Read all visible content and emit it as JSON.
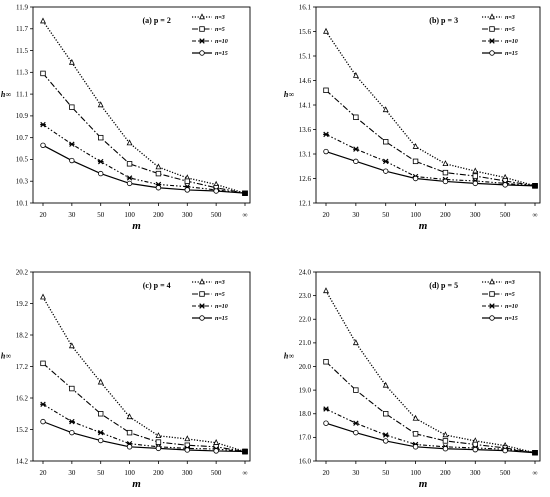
{
  "chart_data": [
    {
      "type": "line",
      "title": "(a) p = 2",
      "xlabel": "m",
      "ylabel": "h∞",
      "categories": [
        "20",
        "30",
        "50",
        "100",
        "200",
        "300",
        "500",
        "∞"
      ],
      "yticks": [
        "10.1",
        "10.3",
        "10.5",
        "10.7",
        "10.9",
        "11.1",
        "11.3",
        "11.5",
        "11.7",
        "11.9"
      ],
      "ylim": [
        10.1,
        11.9
      ],
      "legend_position": "top-right",
      "series": [
        {
          "name": "n=3",
          "values": [
            11.77,
            11.39,
            11.0,
            10.65,
            10.43,
            10.33,
            10.27,
            10.19
          ]
        },
        {
          "name": "n=5",
          "values": [
            11.29,
            10.98,
            10.7,
            10.46,
            10.37,
            10.3,
            10.24,
            10.19
          ]
        },
        {
          "name": "n=10",
          "values": [
            10.82,
            10.64,
            10.48,
            10.33,
            10.27,
            10.25,
            10.22,
            10.19
          ]
        },
        {
          "name": "n=15",
          "values": [
            10.63,
            10.49,
            10.37,
            10.28,
            10.24,
            10.22,
            10.21,
            10.19
          ]
        }
      ]
    },
    {
      "type": "line",
      "title": "(b) p = 3",
      "xlabel": "m",
      "ylabel": "h∞",
      "categories": [
        "20",
        "30",
        "50",
        "100",
        "200",
        "300",
        "500",
        "∞"
      ],
      "yticks": [
        "12.1",
        "12.6",
        "13.1",
        "13.6",
        "14.1",
        "14.6",
        "15.1",
        "15.6",
        "16.1"
      ],
      "ylim": [
        12.1,
        16.1
      ],
      "legend_position": "top-right",
      "series": [
        {
          "name": "n=3",
          "values": [
            15.6,
            14.7,
            14.0,
            13.25,
            12.9,
            12.75,
            12.62,
            12.45
          ]
        },
        {
          "name": "n=5",
          "values": [
            14.4,
            13.85,
            13.35,
            12.95,
            12.72,
            12.65,
            12.55,
            12.45
          ]
        },
        {
          "name": "n=10",
          "values": [
            13.5,
            13.2,
            12.95,
            12.64,
            12.58,
            12.55,
            12.5,
            12.45
          ]
        },
        {
          "name": "n=15",
          "values": [
            13.15,
            12.95,
            12.75,
            12.6,
            12.54,
            12.5,
            12.47,
            12.45
          ]
        }
      ]
    },
    {
      "type": "line",
      "title": "(c) p = 4",
      "xlabel": "m",
      "ylabel": "h∞",
      "categories": [
        "20",
        "30",
        "50",
        "100",
        "200",
        "300",
        "500",
        "∞"
      ],
      "yticks": [
        "14.2",
        "15.2",
        "16.2",
        "17.2",
        "18.2",
        "19.2",
        "20.2"
      ],
      "ylim": [
        14.2,
        20.2
      ],
      "legend_position": "top-right",
      "series": [
        {
          "name": "n=3",
          "values": [
            19.4,
            17.85,
            16.7,
            15.6,
            15.0,
            14.9,
            14.78,
            14.5
          ]
        },
        {
          "name": "n=5",
          "values": [
            17.3,
            16.5,
            15.7,
            15.1,
            14.8,
            14.7,
            14.65,
            14.5
          ]
        },
        {
          "name": "n=10",
          "values": [
            16.0,
            15.45,
            15.1,
            14.75,
            14.65,
            14.6,
            14.58,
            14.5
          ]
        },
        {
          "name": "n=15",
          "values": [
            15.45,
            15.1,
            14.85,
            14.65,
            14.6,
            14.55,
            14.52,
            14.5
          ]
        }
      ]
    },
    {
      "type": "line",
      "title": "(d) p = 5",
      "xlabel": "m",
      "ylabel": "h∞",
      "categories": [
        "20",
        "30",
        "50",
        "100",
        "200",
        "300",
        "500",
        "∞"
      ],
      "yticks": [
        "16.0",
        "17.0",
        "18.0",
        "19.0",
        "20.0",
        "21.0",
        "22.0",
        "23.0",
        "24.0"
      ],
      "ylim": [
        16.0,
        24.0
      ],
      "legend_position": "top-right",
      "series": [
        {
          "name": "n=3",
          "values": [
            23.2,
            21.0,
            19.2,
            17.8,
            17.1,
            16.85,
            16.65,
            16.35
          ]
        },
        {
          "name": "n=5",
          "values": [
            20.2,
            19.0,
            18.0,
            17.15,
            16.85,
            16.7,
            16.55,
            16.35
          ]
        },
        {
          "name": "n=10",
          "values": [
            18.2,
            17.6,
            17.1,
            16.7,
            16.6,
            16.55,
            16.5,
            16.35
          ]
        },
        {
          "name": "n=15",
          "values": [
            17.6,
            17.2,
            16.85,
            16.6,
            16.52,
            16.48,
            16.44,
            16.35
          ]
        }
      ]
    }
  ]
}
